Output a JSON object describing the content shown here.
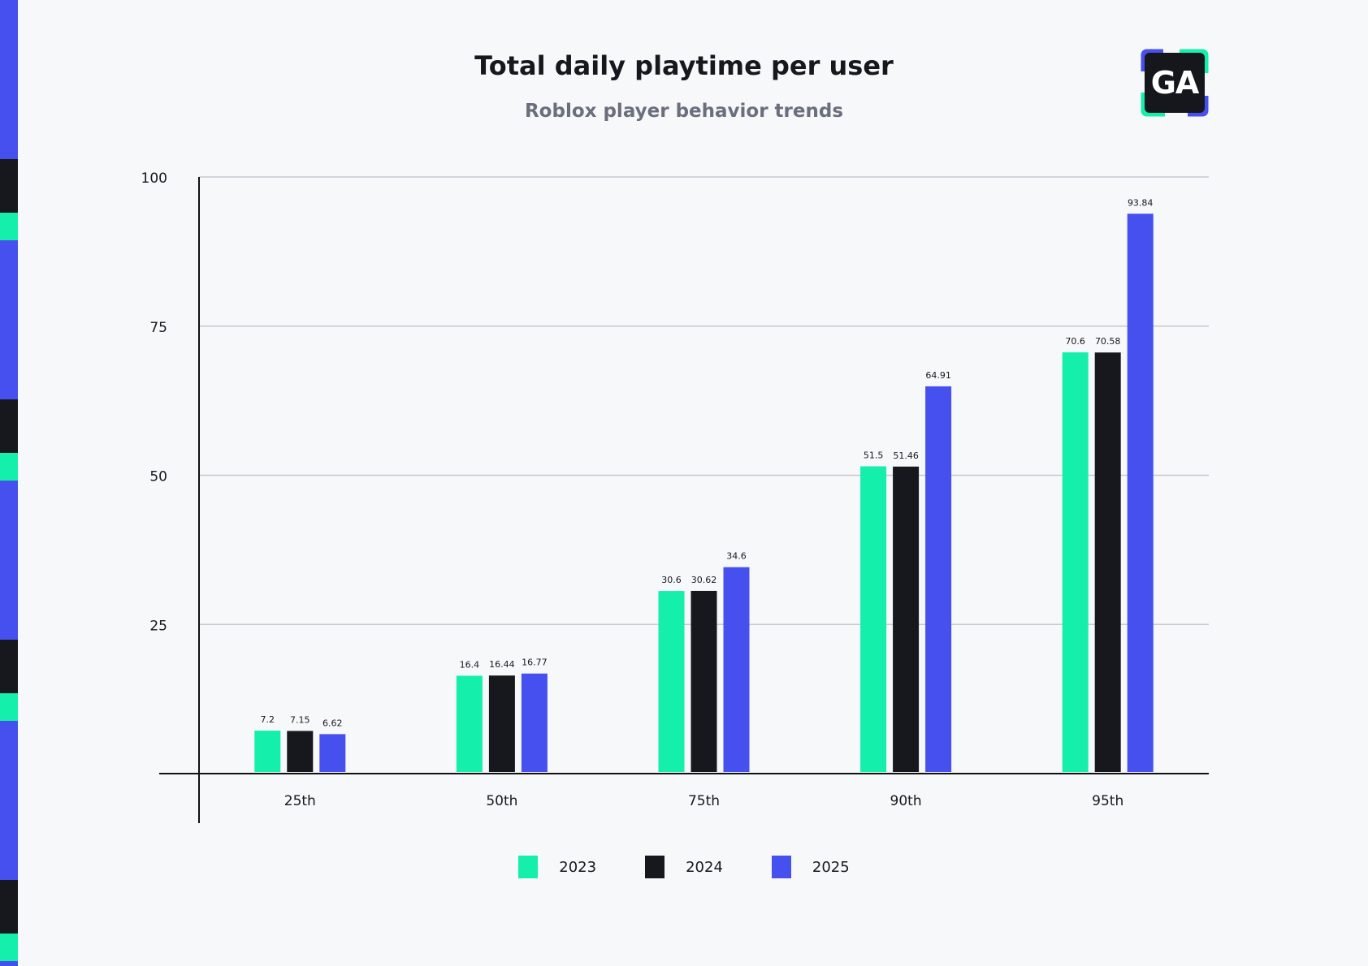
{
  "header": {
    "title": "Total daily playtime per user",
    "subtitle": "Roblox player behavior trends",
    "logo_text": "GA"
  },
  "colors": {
    "green": "#14efac",
    "black": "#16181e",
    "blue": "#4650ee",
    "grid": "#c5c8d2",
    "axis": "#111111",
    "background": "#f7f8fa"
  },
  "chart_data": {
    "type": "bar",
    "categories": [
      "25th",
      "50th",
      "75th",
      "90th",
      "95th"
    ],
    "series": [
      {
        "name": "2023",
        "color": "#14efac",
        "values": [
          7.2,
          16.4,
          30.6,
          51.5,
          70.6
        ]
      },
      {
        "name": "2024",
        "color": "#16181e",
        "values": [
          7.15,
          16.44,
          30.62,
          51.46,
          70.58
        ]
      },
      {
        "name": "2025",
        "color": "#4650ee",
        "values": [
          6.62,
          16.77,
          34.6,
          64.91,
          93.84
        ]
      }
    ],
    "title": "Total daily playtime per user",
    "subtitle": "Roblox player behavior trends",
    "xlabel": "",
    "ylabel": "",
    "ylim": [
      0,
      100
    ],
    "yticks": [
      25,
      50,
      75,
      100
    ],
    "grid": true,
    "legend": "bottom-center"
  }
}
